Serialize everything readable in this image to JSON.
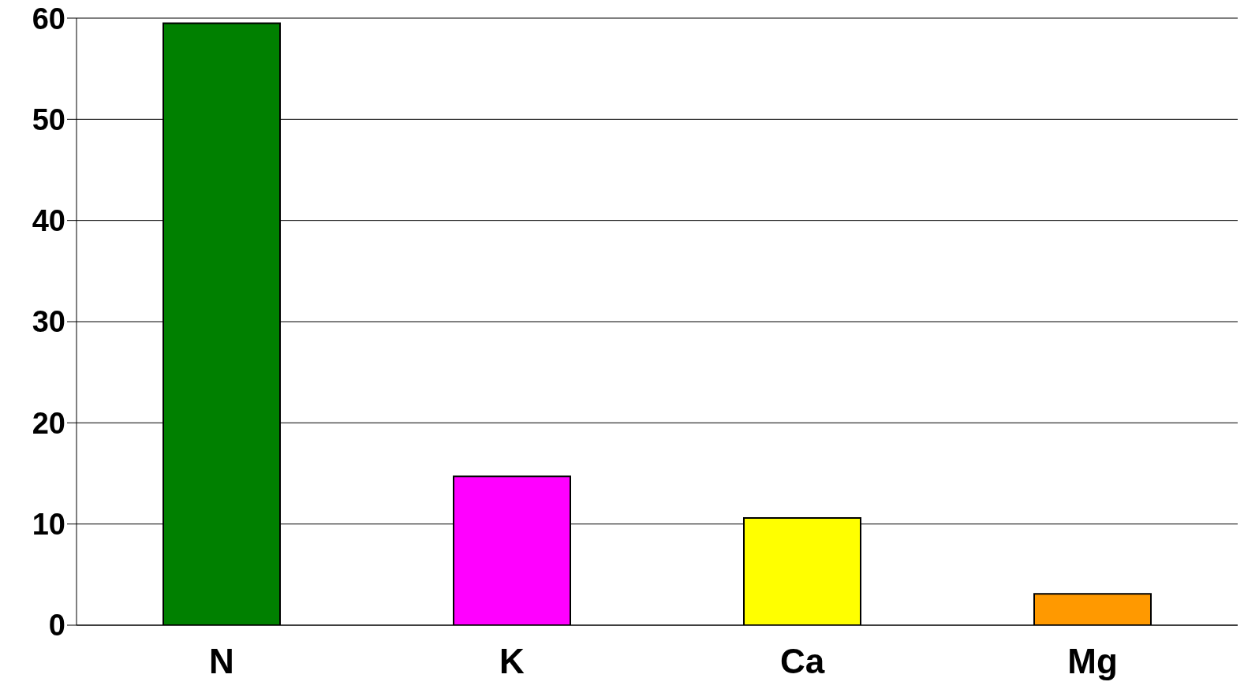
{
  "chart_data": {
    "type": "bar",
    "categories": [
      "N",
      "K",
      "Ca",
      "Mg"
    ],
    "values": [
      59.5,
      14.7,
      10.6,
      3.1
    ],
    "colors": [
      "#008000",
      "#ff00ff",
      "#ffff00",
      "#ff9900"
    ],
    "ylim": [
      0,
      60
    ],
    "yticks": [
      0,
      10,
      20,
      30,
      40,
      50,
      60
    ],
    "grid": "y"
  }
}
